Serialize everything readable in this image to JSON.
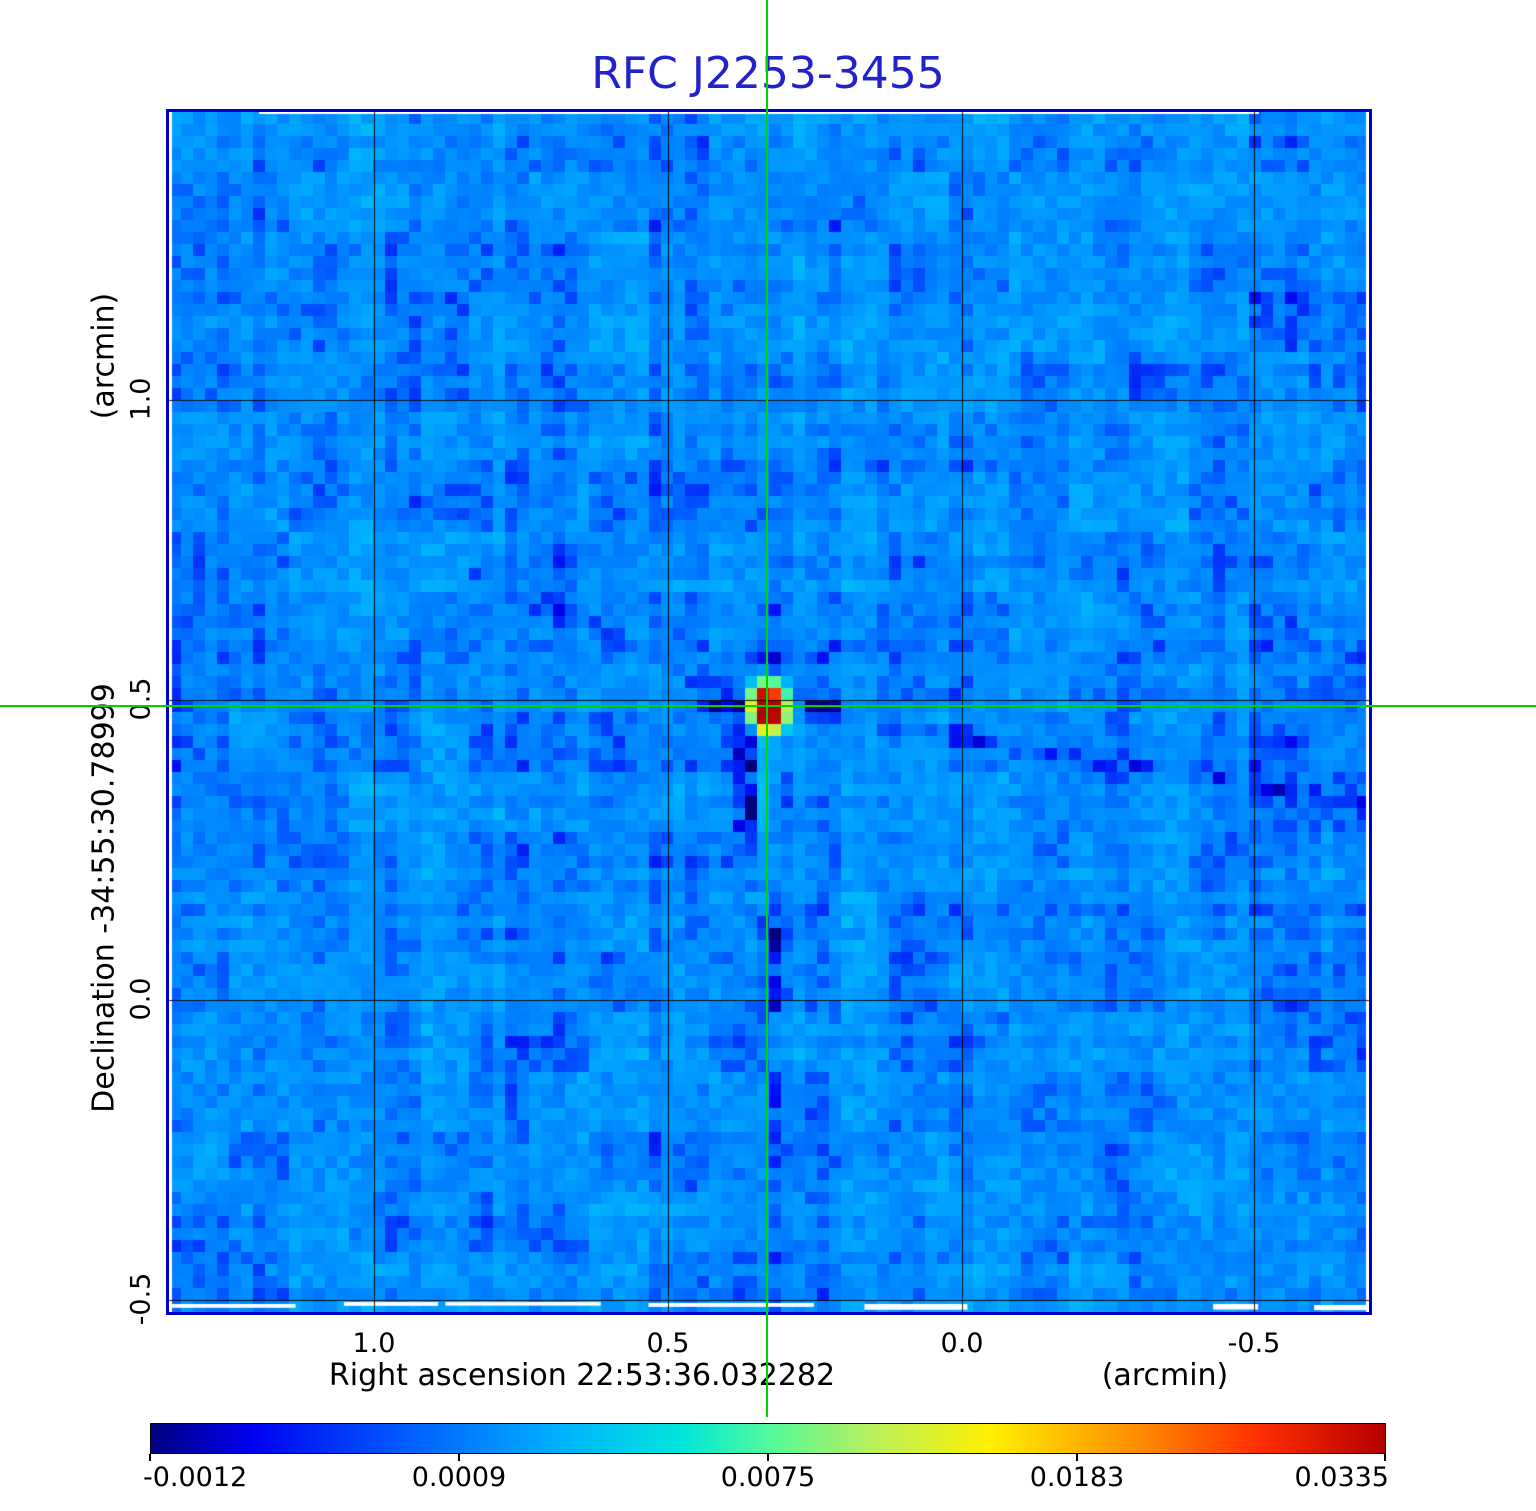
{
  "title": {
    "text": "RFC J2253-3455"
  },
  "axes": {
    "x": {
      "title": "Right ascension  22:53:36.032282",
      "unit": "(arcmin)",
      "ticks": [
        "1.0",
        "0.5",
        "0.0",
        "-0.5"
      ]
    },
    "y": {
      "title": "Declination  -34:55:30.78999",
      "unit": "(arcmin)",
      "ticks": [
        "1.0",
        "0.5",
        "0.0",
        "-0.5"
      ]
    }
  },
  "colorbar": {
    "labels": [
      "-0.0012",
      "0.0009",
      "0.0075",
      "0.0183",
      "0.0335"
    ]
  },
  "colors": {
    "title_blue": "#2222cc",
    "frame_blue": "#0000c4",
    "crosshair_green": "#00d400",
    "grid_black": "#000000",
    "background_sky": "#0d7ae6"
  },
  "chart_data": {
    "type": "heatmap",
    "title": "RFC J2253-3455",
    "xlabel": "Right ascension  22:53:36.032282 (arcmin)",
    "ylabel": "Declination  -34:55:30.78999 (arcmin)",
    "x_ticks_arcmin": [
      1.0,
      0.5,
      0.0,
      -0.5
    ],
    "y_ticks_arcmin": [
      1.0,
      0.5,
      0.0,
      -0.5
    ],
    "x_range_arcmin": [
      1.35,
      -0.7
    ],
    "y_range_arcmin": [
      -0.52,
      1.48
    ],
    "grid": true,
    "colorbar_position": "bottom",
    "intensity_scale": {
      "tick_values": [
        -0.0012,
        0.0009,
        0.0075,
        0.0183,
        0.0335
      ],
      "tick_positions": [
        0,
        0.25,
        0.5,
        0.75,
        1.0
      ]
    },
    "colormap_stops": [
      [
        0.0,
        "#00007f"
      ],
      [
        0.08,
        "#0000f0"
      ],
      [
        0.2,
        "#0058ff"
      ],
      [
        0.33,
        "#00b0ff"
      ],
      [
        0.43,
        "#00e6da"
      ],
      [
        0.5,
        "#50fa9c"
      ],
      [
        0.58,
        "#b4f060"
      ],
      [
        0.68,
        "#fff000"
      ],
      [
        0.8,
        "#ff8c00"
      ],
      [
        0.9,
        "#ff2d00"
      ],
      [
        1.0,
        "#b40000"
      ]
    ],
    "source": {
      "ra_offset_arcmin": 0.33,
      "dec_offset_arcmin": 0.49,
      "peak_value": 0.0335,
      "morphology": "compact point source with negative sidelobe dashes left, positive vertical streak below, faint diagonal sidelobe stripes"
    },
    "background": {
      "mean_value": 0.0015,
      "fluctuation": 0.001
    },
    "crosshair_arcmin": {
      "x": 0.33,
      "y": 0.49
    }
  }
}
